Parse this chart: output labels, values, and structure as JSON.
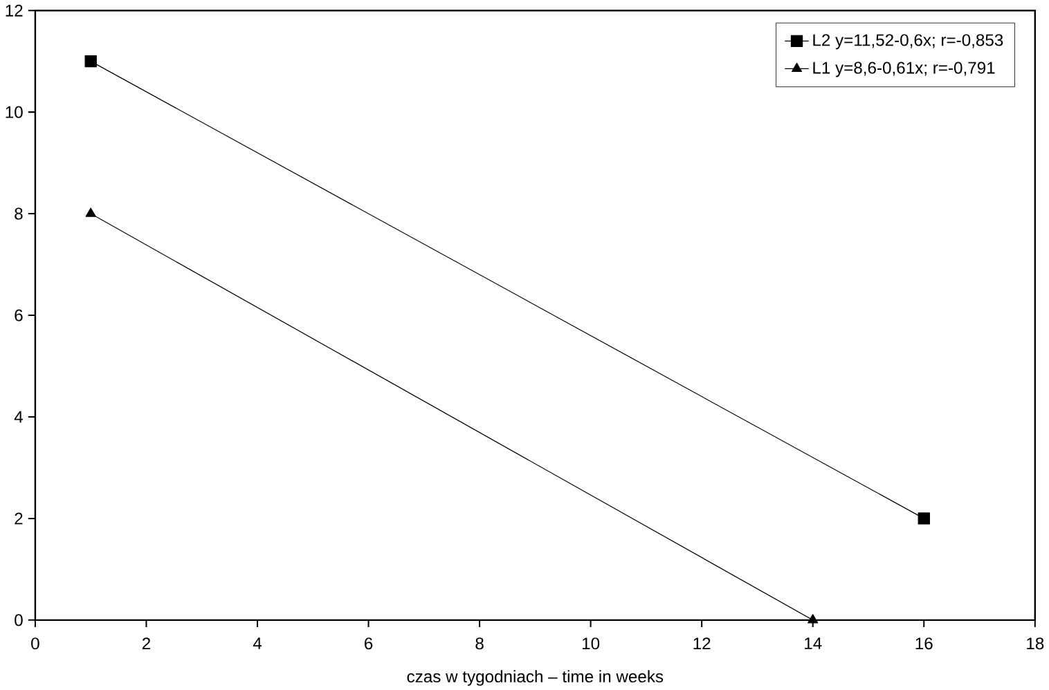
{
  "chart_data": {
    "type": "line",
    "xlabel": "czas w tygodniach – time in weeks",
    "xlim": [
      0,
      18
    ],
    "xticks": [
      0,
      2,
      4,
      6,
      8,
      10,
      12,
      14,
      16,
      18
    ],
    "ylim": [
      0,
      12
    ],
    "yticks": [
      0,
      2,
      4,
      6,
      8,
      10,
      12
    ],
    "legend": "top right",
    "grid": false,
    "series": [
      {
        "name": "L2  y=11,52-0,6x;  r=-0,853",
        "color": "#000000",
        "marker": "square",
        "x": [
          1,
          16
        ],
        "values": [
          11,
          2
        ]
      },
      {
        "name": "L1  y=8,6-0,61x;    r=-0,791",
        "color": "#000000",
        "marker": "triangle",
        "x": [
          1,
          14
        ],
        "values": [
          8,
          0
        ]
      }
    ]
  }
}
